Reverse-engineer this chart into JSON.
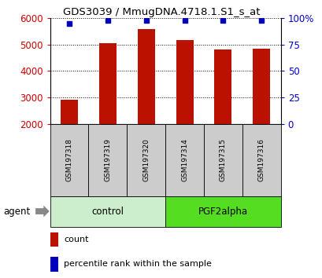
{
  "title": "GDS3039 / MmugDNA.4718.1.S1_s_at",
  "samples": [
    "GSM197318",
    "GSM197319",
    "GSM197320",
    "GSM197314",
    "GSM197315",
    "GSM197316"
  ],
  "counts": [
    2900,
    5050,
    5580,
    5180,
    4800,
    4830
  ],
  "percentile_ranks": [
    95,
    98,
    98,
    98,
    98,
    98
  ],
  "groups": [
    {
      "label": "control",
      "color": "#bbeeaa",
      "color2": "#99ee77",
      "indices": [
        0,
        1,
        2
      ]
    },
    {
      "label": "PGF2alpha",
      "color": "#66dd33",
      "indices": [
        3,
        4,
        5
      ]
    }
  ],
  "ylim_left": [
    2000,
    6000
  ],
  "ylim_right": [
    0,
    100
  ],
  "yticks_left": [
    2000,
    3000,
    4000,
    5000,
    6000
  ],
  "yticks_right": [
    0,
    25,
    50,
    75,
    100
  ],
  "bar_color": "#bb1100",
  "dot_color": "#0000bb",
  "bar_width": 0.45,
  "tick_label_color_left": "#cc0000",
  "tick_label_color_right": "#0000cc",
  "sample_box_color": "#cccccc",
  "agent_label": "agent",
  "legend_count_label": "count",
  "legend_percentile_label": "percentile rank within the sample",
  "control_color": "#cceecc",
  "pgf2alpha_color": "#55dd22"
}
